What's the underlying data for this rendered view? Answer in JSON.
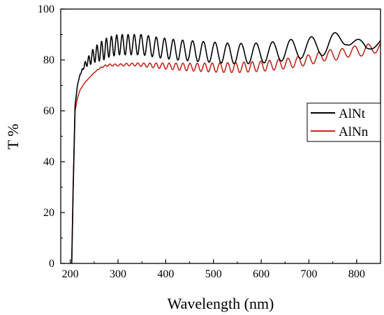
{
  "chart_data": {
    "type": "line",
    "title": "",
    "xlabel": "Wavelength (nm)",
    "ylabel": "T %",
    "xlim": [
      180,
      850
    ],
    "ylim": [
      0,
      100
    ],
    "x_ticks": [
      200,
      300,
      400,
      500,
      600,
      700,
      800
    ],
    "y_ticks": [
      0,
      20,
      40,
      60,
      80,
      100
    ],
    "grid": false,
    "legend_position": "right",
    "series": [
      {
        "name": "AlNt",
        "color": "#000000",
        "x": [
          203,
          206,
          210,
          215,
          220,
          230,
          240,
          250,
          260,
          270,
          280,
          290,
          300,
          310,
          320,
          330,
          340,
          350,
          380,
          420,
          460,
          500,
          540,
          580,
          620,
          660,
          700,
          740,
          780,
          820,
          850
        ],
        "y": [
          0,
          30,
          62,
          70,
          74,
          78,
          80,
          82,
          83,
          84,
          85,
          85.5,
          86,
          86,
          86,
          86,
          86,
          86,
          85,
          84,
          83.5,
          83,
          82.5,
          82.5,
          83,
          84,
          85,
          86,
          89,
          84,
          88
        ],
        "oscillation_amplitude": [
          0,
          0,
          0,
          0,
          0,
          1,
          2,
          3,
          3.5,
          4,
          4,
          4,
          4,
          4,
          4,
          4,
          4,
          4,
          4,
          4,
          4,
          4,
          4,
          4,
          4,
          4,
          4,
          4,
          3,
          2,
          1
        ],
        "oscillation_period_nm": [
          4,
          4,
          4,
          4,
          4,
          7,
          8,
          9,
          9.5,
          10,
          10.5,
          11,
          11.5,
          12,
          12.5,
          13,
          14,
          15,
          17,
          19,
          22,
          25,
          28,
          32,
          36,
          40,
          45,
          50,
          55,
          60,
          60
        ]
      },
      {
        "name": "AlNn",
        "color": "#c0281e",
        "x": [
          203,
          206,
          210,
          215,
          220,
          230,
          240,
          250,
          260,
          270,
          280,
          290,
          300,
          320,
          340,
          360,
          380,
          400,
          450,
          500,
          550,
          600,
          650,
          700,
          740,
          760,
          790,
          810,
          830,
          850
        ],
        "y": [
          0,
          28,
          60,
          65,
          68,
          71,
          73,
          75,
          76.5,
          77.5,
          78,
          78,
          78,
          78.2,
          78.2,
          78,
          77.8,
          77.6,
          77.2,
          77,
          77,
          77.5,
          78.5,
          80,
          82,
          82,
          83.5,
          83.5,
          84.5,
          85
        ],
        "oscillation_amplitude": [
          0,
          0,
          0,
          0,
          0,
          0,
          0,
          0,
          0.2,
          0.3,
          0.4,
          0.4,
          0.4,
          0.5,
          0.6,
          0.8,
          1,
          1.2,
          1.5,
          1.8,
          2,
          2,
          2,
          2,
          2,
          2,
          2,
          2,
          2,
          2
        ],
        "oscillation_period_nm": [
          5,
          5,
          5,
          5,
          5,
          6,
          6,
          7,
          8,
          9,
          10,
          11,
          12,
          12,
          12,
          13,
          13,
          14,
          15,
          16,
          17,
          18,
          20,
          22,
          24,
          25,
          27,
          28,
          29,
          30
        ]
      }
    ]
  }
}
